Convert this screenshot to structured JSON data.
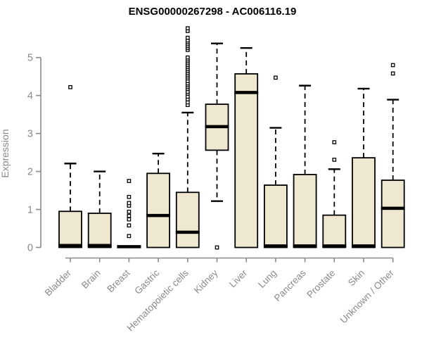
{
  "chart_data": {
    "type": "boxplot",
    "title": "ENSG00000267298 - AC006116.19",
    "ylabel": "Expression",
    "xlabel": "",
    "ylim": [
      0,
      5
    ],
    "yticks": [
      0,
      1,
      2,
      3,
      4,
      5
    ],
    "grid": false,
    "legend": null,
    "categories": [
      "Bladder",
      "Brain",
      "Breast",
      "Gastric",
      "Hematopoietic cells",
      "Kidney",
      "Liver",
      "Lung",
      "Pancreas",
      "Prostate",
      "Skin",
      "Unknown / Other"
    ],
    "series": [
      {
        "category": "Bladder",
        "whisker_low": 0,
        "q1": 0,
        "median": 0.05,
        "q3": 0.95,
        "whisker_high": 2.21,
        "outliers": [
          4.22
        ]
      },
      {
        "category": "Brain",
        "whisker_low": 0,
        "q1": 0,
        "median": 0.05,
        "q3": 0.9,
        "whisker_high": 2.0,
        "outliers": []
      },
      {
        "category": "Breast",
        "whisker_low": 0,
        "q1": 0,
        "median": 0.02,
        "q3": 0.02,
        "whisker_high": 0.02,
        "outliers": [
          0.3,
          0.58,
          0.74,
          0.83,
          0.94,
          1.1,
          1.17,
          1.33,
          1.75
        ]
      },
      {
        "category": "Gastric",
        "whisker_low": 0,
        "q1": 0,
        "median": 0.84,
        "q3": 1.95,
        "whisker_high": 2.47,
        "outliers": []
      },
      {
        "category": "Hematopoietic cells",
        "whisker_low": 0,
        "q1": 0,
        "median": 0.4,
        "q3": 1.45,
        "whisker_high": 3.55,
        "outliers": [
          3.75,
          3.82,
          3.9,
          3.97,
          4.05,
          4.1,
          4.17,
          4.22,
          4.27,
          4.32,
          4.38,
          4.45,
          4.5,
          4.55,
          4.6,
          4.65,
          4.7,
          4.75,
          4.8,
          4.85,
          4.9,
          4.95,
          5.0,
          5.2,
          5.25,
          5.3,
          5.35,
          5.4,
          5.45,
          5.52,
          5.7,
          5.77
        ]
      },
      {
        "category": "Kidney",
        "whisker_low": 1.22,
        "q1": 2.56,
        "median": 3.18,
        "q3": 3.77,
        "whisker_high": 5.37,
        "outliers": [
          0.0
        ]
      },
      {
        "category": "Liver",
        "whisker_low": 0,
        "q1": 0,
        "median": 4.08,
        "q3": 4.57,
        "whisker_high": 5.25,
        "outliers": []
      },
      {
        "category": "Lung",
        "whisker_low": 0,
        "q1": 0,
        "median": 0.04,
        "q3": 1.64,
        "whisker_high": 3.15,
        "outliers": [
          4.47
        ]
      },
      {
        "category": "Pancreas",
        "whisker_low": 0,
        "q1": 0,
        "median": 0.04,
        "q3": 1.92,
        "whisker_high": 4.26,
        "outliers": []
      },
      {
        "category": "Prostate",
        "whisker_low": 0,
        "q1": 0,
        "median": 0.04,
        "q3": 0.85,
        "whisker_high": 2.06,
        "outliers": [
          2.31,
          2.77
        ]
      },
      {
        "category": "Skin",
        "whisker_low": 0,
        "q1": 0,
        "median": 0.04,
        "q3": 2.36,
        "whisker_high": 4.18,
        "outliers": []
      },
      {
        "category": "Unknown / Other",
        "whisker_low": 0,
        "q1": 0,
        "median": 1.03,
        "q3": 1.77,
        "whisker_high": 3.89,
        "outliers": [
          4.58,
          4.8
        ]
      }
    ],
    "colors": {
      "box_fill": "#EDE8CF",
      "box_border": "#000000",
      "median": "#000000",
      "whisker": "#000000",
      "outlier": "#000000",
      "axis": "#8A8A8A",
      "tick_label": "#8A8A8A",
      "title": "#000000",
      "background": "#FFFFFF"
    }
  }
}
